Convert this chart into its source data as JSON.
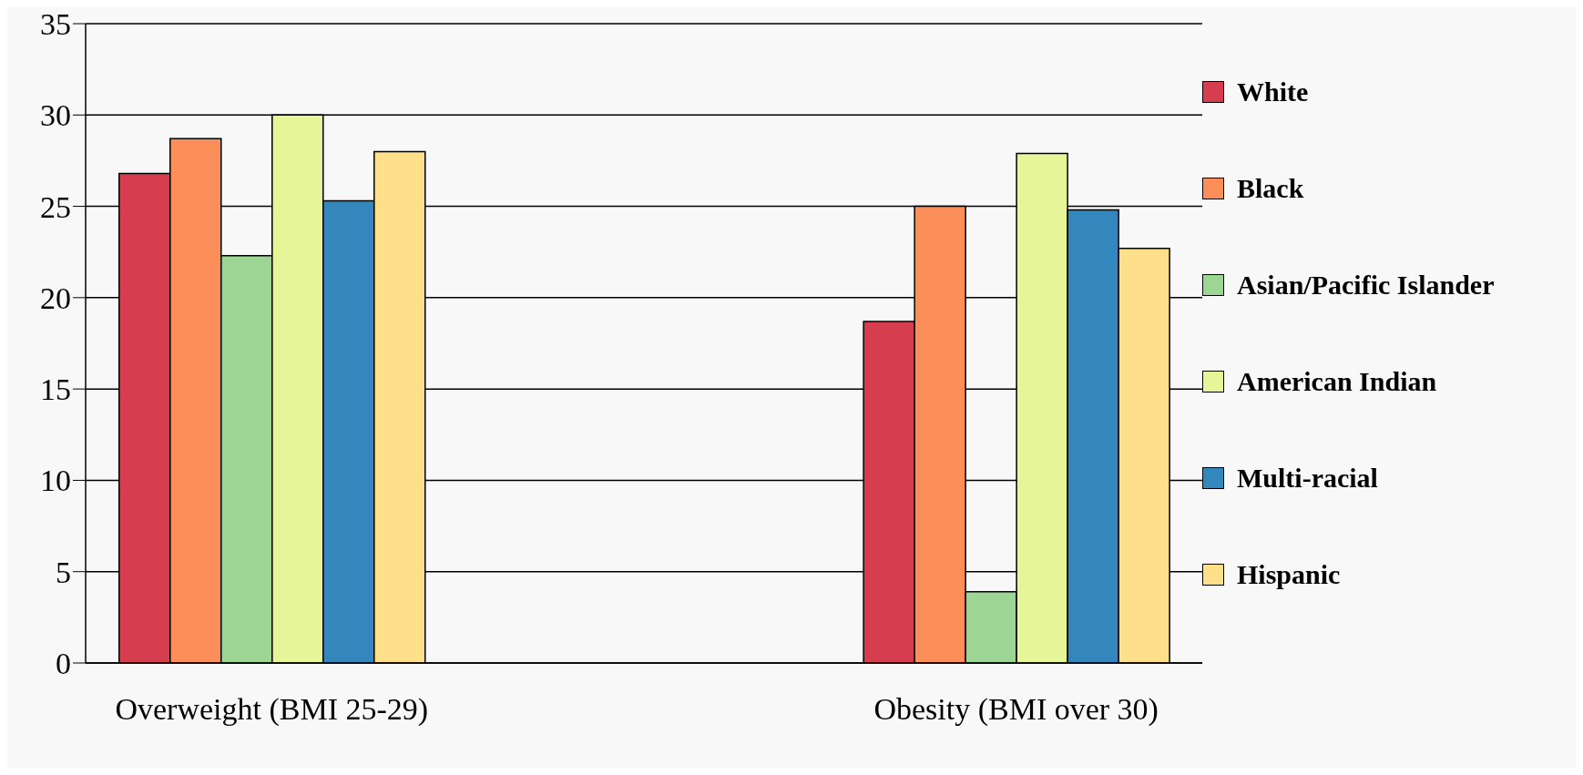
{
  "chart_data": {
    "type": "bar",
    "categories": [
      "Overweight (BMI 25-29)",
      null,
      "Obesity (BMI over 30)"
    ],
    "series": [
      {
        "name": "White",
        "color": "#d63e4f",
        "values": [
          26.8,
          null,
          18.7
        ]
      },
      {
        "name": "Black",
        "color": "#fc8e5a",
        "values": [
          28.7,
          null,
          25
        ]
      },
      {
        "name": "Asian/Pacific Islander",
        "color": "#9dd594",
        "values": [
          22.3,
          null,
          3.9
        ]
      },
      {
        "name": "American Indian",
        "color": "#e6f598",
        "values": [
          30,
          null,
          27.9
        ]
      },
      {
        "name": "Multi-racial",
        "color": "#3387bd",
        "values": [
          25.3,
          null,
          24.8
        ]
      },
      {
        "name": "Hispanic",
        "color": "#fee08b",
        "values": [
          28,
          null,
          22.7
        ]
      }
    ],
    "ylim": [
      0,
      35
    ],
    "yticks": [
      0,
      5,
      10,
      15,
      20,
      25,
      30,
      35
    ],
    "grid": "y",
    "legend": "right"
  }
}
